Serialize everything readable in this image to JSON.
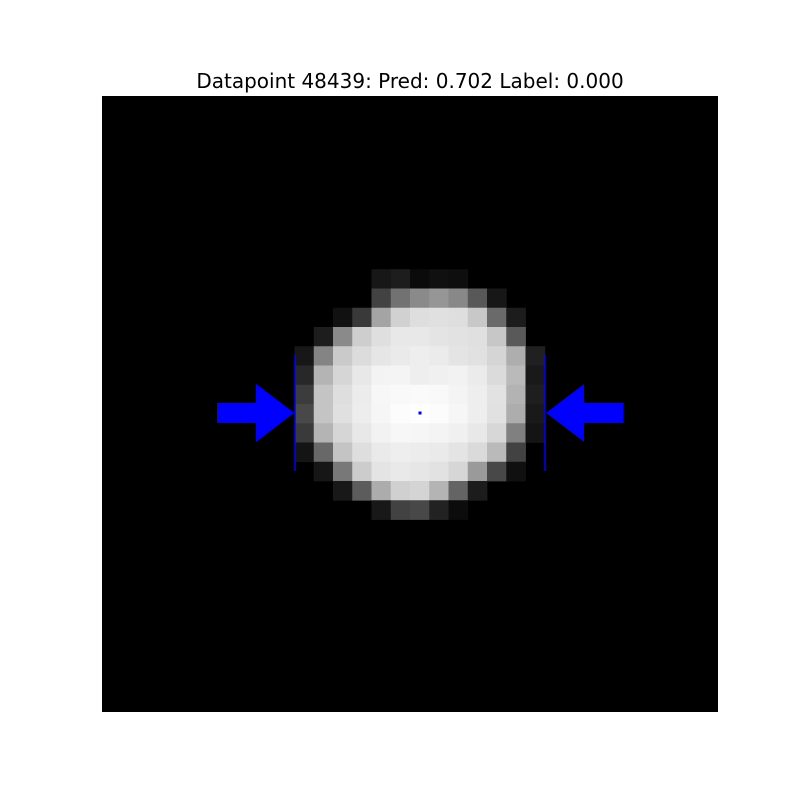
{
  "title": {
    "datapoint": "48439",
    "pred": "0.702",
    "label": "0.000",
    "text": "Datapoint 48439: Pred: 0.702 Label: 0.000"
  },
  "image": {
    "background_color": "#000000",
    "marker_color": "#0000ff",
    "grid_size": 32,
    "pixels": [
      {
        "r": 9,
        "c": 14,
        "v": 23
      },
      {
        "r": 9,
        "c": 15,
        "v": 29
      },
      {
        "r": 9,
        "c": 16,
        "v": 11
      },
      {
        "r": 9,
        "c": 17,
        "v": 16
      },
      {
        "r": 9,
        "c": 18,
        "v": 14
      },
      {
        "r": 10,
        "c": 14,
        "v": 66
      },
      {
        "r": 10,
        "c": 15,
        "v": 114
      },
      {
        "r": 10,
        "c": 16,
        "v": 138
      },
      {
        "r": 10,
        "c": 17,
        "v": 150
      },
      {
        "r": 10,
        "c": 18,
        "v": 136
      },
      {
        "r": 10,
        "c": 19,
        "v": 88
      },
      {
        "r": 10,
        "c": 20,
        "v": 23
      },
      {
        "r": 11,
        "c": 12,
        "v": 17
      },
      {
        "r": 11,
        "c": 13,
        "v": 57
      },
      {
        "r": 11,
        "c": 14,
        "v": 164
      },
      {
        "r": 11,
        "c": 15,
        "v": 209
      },
      {
        "r": 11,
        "c": 16,
        "v": 222
      },
      {
        "r": 11,
        "c": 17,
        "v": 224
      },
      {
        "r": 11,
        "c": 18,
        "v": 222
      },
      {
        "r": 11,
        "c": 19,
        "v": 200
      },
      {
        "r": 11,
        "c": 20,
        "v": 106
      },
      {
        "r": 11,
        "c": 21,
        "v": 28
      },
      {
        "r": 12,
        "c": 11,
        "v": 29
      },
      {
        "r": 12,
        "c": 12,
        "v": 138
      },
      {
        "r": 12,
        "c": 13,
        "v": 206
      },
      {
        "r": 12,
        "c": 14,
        "v": 223
      },
      {
        "r": 12,
        "c": 15,
        "v": 232
      },
      {
        "r": 12,
        "c": 16,
        "v": 232
      },
      {
        "r": 12,
        "c": 17,
        "v": 228
      },
      {
        "r": 12,
        "c": 18,
        "v": 226
      },
      {
        "r": 12,
        "c": 19,
        "v": 224
      },
      {
        "r": 12,
        "c": 20,
        "v": 199
      },
      {
        "r": 12,
        "c": 21,
        "v": 89
      },
      {
        "r": 13,
        "c": 10,
        "v": 23
      },
      {
        "r": 13,
        "c": 11,
        "v": 132
      },
      {
        "r": 13,
        "c": 12,
        "v": 202
      },
      {
        "r": 13,
        "c": 13,
        "v": 220
      },
      {
        "r": 13,
        "c": 14,
        "v": 230
      },
      {
        "r": 13,
        "c": 15,
        "v": 234
      },
      {
        "r": 13,
        "c": 16,
        "v": 238
      },
      {
        "r": 13,
        "c": 17,
        "v": 235
      },
      {
        "r": 13,
        "c": 18,
        "v": 228
      },
      {
        "r": 13,
        "c": 19,
        "v": 225
      },
      {
        "r": 13,
        "c": 20,
        "v": 213
      },
      {
        "r": 13,
        "c": 21,
        "v": 174
      },
      {
        "r": 13,
        "c": 22,
        "v": 32
      },
      {
        "r": 14,
        "c": 10,
        "v": 40
      },
      {
        "r": 14,
        "c": 11,
        "v": 180
      },
      {
        "r": 14,
        "c": 12,
        "v": 214
      },
      {
        "r": 14,
        "c": 13,
        "v": 232
      },
      {
        "r": 14,
        "c": 14,
        "v": 243
      },
      {
        "r": 14,
        "c": 15,
        "v": 244
      },
      {
        "r": 14,
        "c": 16,
        "v": 238
      },
      {
        "r": 14,
        "c": 17,
        "v": 240
      },
      {
        "r": 14,
        "c": 18,
        "v": 242
      },
      {
        "r": 14,
        "c": 19,
        "v": 235
      },
      {
        "r": 14,
        "c": 20,
        "v": 219
      },
      {
        "r": 14,
        "c": 21,
        "v": 186
      },
      {
        "r": 14,
        "c": 22,
        "v": 25
      },
      {
        "r": 15,
        "c": 10,
        "v": 60
      },
      {
        "r": 15,
        "c": 11,
        "v": 196
      },
      {
        "r": 15,
        "c": 12,
        "v": 222
      },
      {
        "r": 15,
        "c": 13,
        "v": 236
      },
      {
        "r": 15,
        "c": 14,
        "v": 247
      },
      {
        "r": 15,
        "c": 15,
        "v": 249
      },
      {
        "r": 15,
        "c": 16,
        "v": 250
      },
      {
        "r": 15,
        "c": 17,
        "v": 249
      },
      {
        "r": 15,
        "c": 18,
        "v": 244
      },
      {
        "r": 15,
        "c": 19,
        "v": 238
      },
      {
        "r": 15,
        "c": 20,
        "v": 226
      },
      {
        "r": 15,
        "c": 21,
        "v": 179
      },
      {
        "r": 15,
        "c": 22,
        "v": 30
      },
      {
        "r": 16,
        "c": 10,
        "v": 72
      },
      {
        "r": 16,
        "c": 11,
        "v": 196
      },
      {
        "r": 16,
        "c": 12,
        "v": 224
      },
      {
        "r": 16,
        "c": 13,
        "v": 237
      },
      {
        "r": 16,
        "c": 14,
        "v": 246
      },
      {
        "r": 16,
        "c": 15,
        "v": 252
      },
      {
        "r": 16,
        "c": 16,
        "v": 254
      },
      {
        "r": 16,
        "c": 17,
        "v": 252
      },
      {
        "r": 16,
        "c": 18,
        "v": 246
      },
      {
        "r": 16,
        "c": 19,
        "v": 238
      },
      {
        "r": 16,
        "c": 20,
        "v": 225
      },
      {
        "r": 16,
        "c": 21,
        "v": 173
      },
      {
        "r": 16,
        "c": 22,
        "v": 25
      },
      {
        "r": 17,
        "c": 10,
        "v": 58
      },
      {
        "r": 17,
        "c": 11,
        "v": 180
      },
      {
        "r": 17,
        "c": 12,
        "v": 214
      },
      {
        "r": 17,
        "c": 13,
        "v": 232
      },
      {
        "r": 17,
        "c": 14,
        "v": 242
      },
      {
        "r": 17,
        "c": 15,
        "v": 247
      },
      {
        "r": 17,
        "c": 16,
        "v": 246
      },
      {
        "r": 17,
        "c": 17,
        "v": 244
      },
      {
        "r": 17,
        "c": 18,
        "v": 240
      },
      {
        "r": 17,
        "c": 19,
        "v": 232
      },
      {
        "r": 17,
        "c": 20,
        "v": 215
      },
      {
        "r": 17,
        "c": 21,
        "v": 128
      },
      {
        "r": 17,
        "c": 22,
        "v": 20
      },
      {
        "r": 18,
        "c": 10,
        "v": 20
      },
      {
        "r": 18,
        "c": 11,
        "v": 104
      },
      {
        "r": 18,
        "c": 12,
        "v": 196
      },
      {
        "r": 18,
        "c": 13,
        "v": 222
      },
      {
        "r": 18,
        "c": 14,
        "v": 234
      },
      {
        "r": 18,
        "c": 15,
        "v": 238
      },
      {
        "r": 18,
        "c": 16,
        "v": 236
      },
      {
        "r": 18,
        "c": 17,
        "v": 234
      },
      {
        "r": 18,
        "c": 18,
        "v": 228
      },
      {
        "r": 18,
        "c": 19,
        "v": 218
      },
      {
        "r": 18,
        "c": 20,
        "v": 186
      },
      {
        "r": 18,
        "c": 21,
        "v": 66
      },
      {
        "r": 19,
        "c": 11,
        "v": 22
      },
      {
        "r": 19,
        "c": 12,
        "v": 120
      },
      {
        "r": 19,
        "c": 13,
        "v": 204
      },
      {
        "r": 19,
        "c": 14,
        "v": 228
      },
      {
        "r": 19,
        "c": 15,
        "v": 233
      },
      {
        "r": 19,
        "c": 16,
        "v": 230
      },
      {
        "r": 19,
        "c": 17,
        "v": 226
      },
      {
        "r": 19,
        "c": 18,
        "v": 214
      },
      {
        "r": 19,
        "c": 19,
        "v": 154
      },
      {
        "r": 19,
        "c": 20,
        "v": 72
      },
      {
        "r": 19,
        "c": 21,
        "v": 16
      },
      {
        "r": 20,
        "c": 12,
        "v": 24
      },
      {
        "r": 20,
        "c": 13,
        "v": 92
      },
      {
        "r": 20,
        "c": 14,
        "v": 172
      },
      {
        "r": 20,
        "c": 15,
        "v": 208
      },
      {
        "r": 20,
        "c": 16,
        "v": 212
      },
      {
        "r": 20,
        "c": 17,
        "v": 180
      },
      {
        "r": 20,
        "c": 18,
        "v": 100
      },
      {
        "r": 20,
        "c": 19,
        "v": 28
      },
      {
        "r": 21,
        "c": 14,
        "v": 24
      },
      {
        "r": 21,
        "c": 15,
        "v": 66
      },
      {
        "r": 21,
        "c": 16,
        "v": 72
      },
      {
        "r": 21,
        "c": 17,
        "v": 34
      },
      {
        "r": 21,
        "c": 18,
        "v": 12
      }
    ]
  }
}
